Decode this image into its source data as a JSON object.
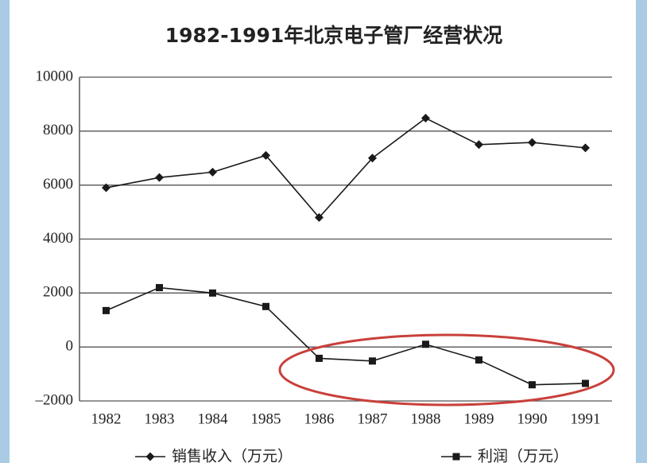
{
  "chart_data": {
    "type": "line",
    "title": "1982-1991年北京电子管厂经营状况",
    "categories": [
      "1982",
      "1983",
      "1984",
      "1985",
      "1986",
      "1987",
      "1988",
      "1989",
      "1990",
      "1991"
    ],
    "series": [
      {
        "name": "销售收入（万元）",
        "color": "#1a1a1a",
        "marker": "diamond",
        "values": [
          5900,
          6280,
          6480,
          7100,
          4800,
          7000,
          8480,
          7500,
          7580,
          7380
        ]
      },
      {
        "name": "利润（万元）",
        "color": "#1a1a1a",
        "marker": "square",
        "values": [
          1350,
          2200,
          2000,
          1500,
          -420,
          -520,
          100,
          -480,
          -1400,
          -1350
        ]
      }
    ],
    "ylim": [
      -2000,
      10000
    ],
    "yticks": [
      {
        "value": -2000,
        "label": "–2000"
      },
      0,
      2000,
      4000,
      6000,
      8000,
      10000
    ],
    "grid": true,
    "legend": "bottom"
  }
}
